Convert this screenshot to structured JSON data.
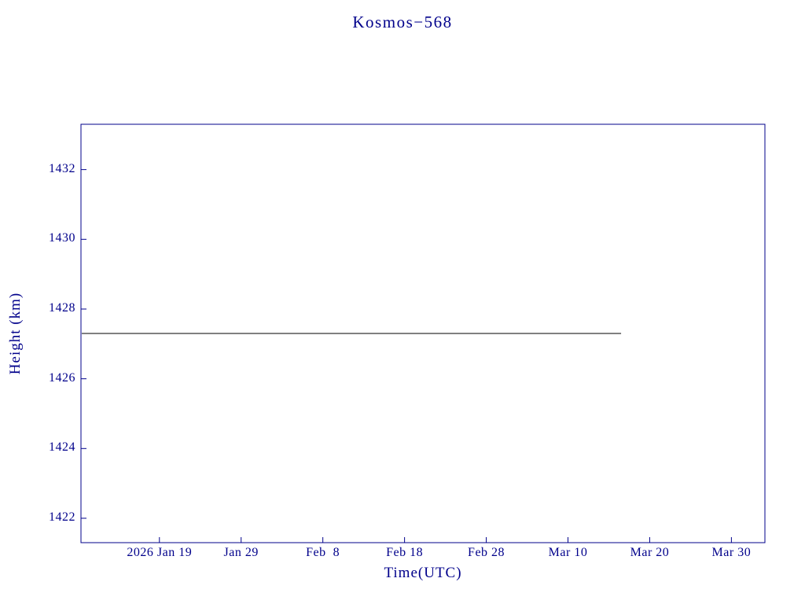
{
  "chart_data": {
    "type": "line",
    "title": "Kosmos−568",
    "xlabel": "Time(UTC)",
    "ylabel": "Height (km)",
    "x_ticks": [
      {
        "label": "2026 Jan 19",
        "day": 0
      },
      {
        "label": "Jan 29",
        "day": 10
      },
      {
        "label": "Feb  8",
        "day": 20
      },
      {
        "label": "Feb 18",
        "day": 30
      },
      {
        "label": "Feb 28",
        "day": 40
      },
      {
        "label": "Mar 10",
        "day": 50
      },
      {
        "label": "Mar 20",
        "day": 60
      },
      {
        "label": "Mar 30",
        "day": 70
      }
    ],
    "y_ticks": [
      1422,
      1424,
      1426,
      1428,
      1430,
      1432
    ],
    "xlim_days": [
      -9.6,
      74.1
    ],
    "ylim": [
      1421.3,
      1433.3
    ],
    "grid": false,
    "legend": "none",
    "series": [
      {
        "name": "Kosmos-568 height",
        "color": "#000000",
        "points": [
          {
            "date": "2026 Jan 9",
            "day": -9.5,
            "height_km": 1427.3
          },
          {
            "date": "2026 Mar 16",
            "day": 56.5,
            "height_km": 1427.3
          }
        ]
      }
    ]
  },
  "colors": {
    "axis": "#00008b",
    "line": "#000000",
    "background": "#ffffff"
  }
}
